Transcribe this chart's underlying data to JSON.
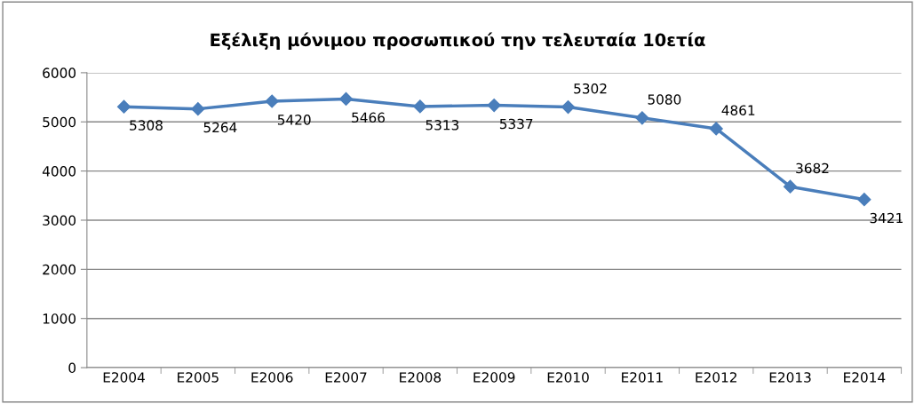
{
  "chart_data": {
    "type": "line",
    "title": "Εξέλιξη μόνιμου προσωπικού την τελευταία 10ετία",
    "categories": [
      "E2004",
      "E2005",
      "E2006",
      "E2007",
      "E2008",
      "E2009",
      "E2010",
      "E2011",
      "E2012",
      "E2013",
      "E2014"
    ],
    "series": [
      {
        "color": "#4a7ebb",
        "values": [
          5308,
          5264,
          5420,
          5466,
          5313,
          5337,
          5302,
          5080,
          4861,
          3682,
          3421
        ]
      }
    ],
    "ylim": [
      0,
      6000
    ],
    "yticks": [
      0,
      1000,
      2000,
      3000,
      4000,
      5000,
      6000
    ],
    "grid": "y",
    "legend": false,
    "marker": "diamond",
    "line_style": "solid",
    "data_labels": true
  }
}
